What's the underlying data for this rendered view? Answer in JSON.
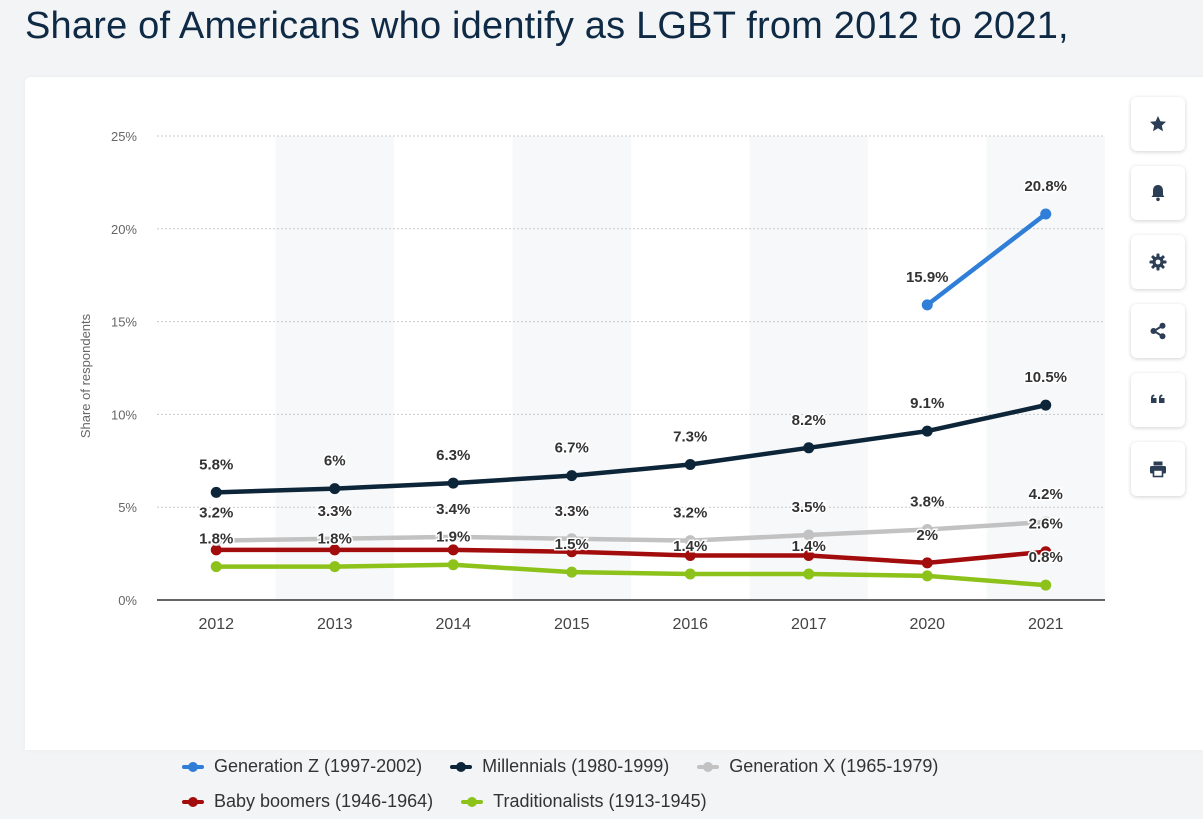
{
  "page": {
    "title": "Share of Americans who identify as LGBT from 2012 to 2021,"
  },
  "toolbar": {
    "buttons": [
      {
        "icon": "star-icon",
        "name": "favorite-button"
      },
      {
        "icon": "bell-icon",
        "name": "notification-button"
      },
      {
        "icon": "gear-icon",
        "name": "settings-button"
      },
      {
        "icon": "share-icon",
        "name": "share-button"
      },
      {
        "icon": "quote-icon",
        "name": "cite-button"
      },
      {
        "icon": "printer-icon",
        "name": "print-button"
      }
    ]
  },
  "chart_data": {
    "type": "line",
    "title": "Share of Americans who identify as LGBT from 2012 to 2021,",
    "xlabel": "",
    "ylabel": "Share of respondents",
    "categories": [
      "2012",
      "2013",
      "2014",
      "2015",
      "2016",
      "2017",
      "2020",
      "2021"
    ],
    "ylim": [
      0,
      25
    ],
    "yticks": [
      "0%",
      "5%",
      "10%",
      "15%",
      "20%",
      "25%"
    ],
    "grid": true,
    "legend_position": "bottom",
    "series": [
      {
        "name": "Generation Z (1997-2002)",
        "color": "#2f7ed8",
        "values": [
          null,
          null,
          null,
          null,
          null,
          null,
          15.9,
          20.8
        ],
        "labels": [
          "",
          "",
          "",
          "",
          "",
          "",
          "15.9%",
          "20.8%"
        ]
      },
      {
        "name": "Millennials (1980-1999)",
        "color": "#0d2538",
        "values": [
          5.8,
          6.0,
          6.3,
          6.7,
          7.3,
          8.2,
          9.1,
          10.5
        ],
        "labels": [
          "5.8%",
          "6%",
          "6.3%",
          "6.7%",
          "7.3%",
          "8.2%",
          "9.1%",
          "10.5%"
        ]
      },
      {
        "name": "Generation X (1965-1979)",
        "color": "#c2c2c2",
        "values": [
          3.2,
          3.3,
          3.4,
          3.3,
          3.2,
          3.5,
          3.8,
          4.2
        ],
        "labels": [
          "3.2%",
          "3.3%",
          "3.4%",
          "3.3%",
          "3.2%",
          "3.5%",
          "3.8%",
          "4.2%"
        ]
      },
      {
        "name": "Baby boomers (1946-1964)",
        "color": "#a30c0c",
        "values": [
          2.7,
          2.7,
          2.7,
          2.6,
          2.4,
          2.4,
          2.0,
          2.6
        ],
        "labels": [
          "",
          "",
          "",
          "",
          "",
          "",
          "2%",
          "2.6%"
        ]
      },
      {
        "name": "Traditionalists (1913-1945)",
        "color": "#8cc21a",
        "values": [
          1.8,
          1.8,
          1.9,
          1.5,
          1.4,
          1.4,
          1.3,
          0.8
        ],
        "labels": [
          "1.8%",
          "1.8%",
          "1.9%",
          "1.5%",
          "1.4%",
          "1.4%",
          "",
          "0.8%"
        ]
      }
    ]
  }
}
